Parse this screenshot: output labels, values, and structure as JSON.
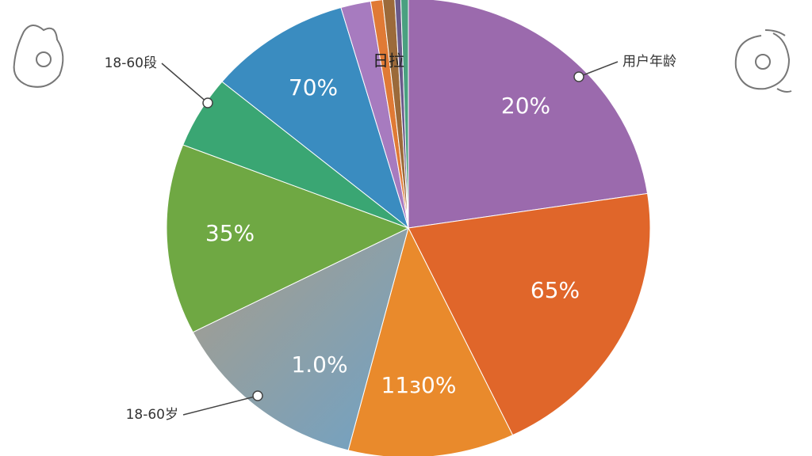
{
  "chart_data": {
    "type": "pie",
    "categories": [
      "用户年龄",
      null,
      null,
      "18-60岁",
      null,
      "18-60段",
      null,
      null,
      null,
      null,
      null,
      null
    ],
    "values": [
      22.6,
      20.3,
      11.1,
      13.5,
      13.4,
      5.1,
      9.5,
      2.0,
      0.8,
      0.8,
      0.4,
      0.5
    ],
    "colors": [
      "#9b6aad",
      "#e0662a",
      "#e98a2c",
      "#8eaac0",
      "#6fa843",
      "#3aa673",
      "#3a8cc0",
      "#a77bbf",
      "#e07a35",
      "#9b6a3a",
      "#6a5a8a",
      "#4aa080"
    ],
    "annotations": [
      "20%",
      "65%",
      "11з0%",
      "1.0%",
      "35%",
      "70%",
      "日拉"
    ]
  }
}
